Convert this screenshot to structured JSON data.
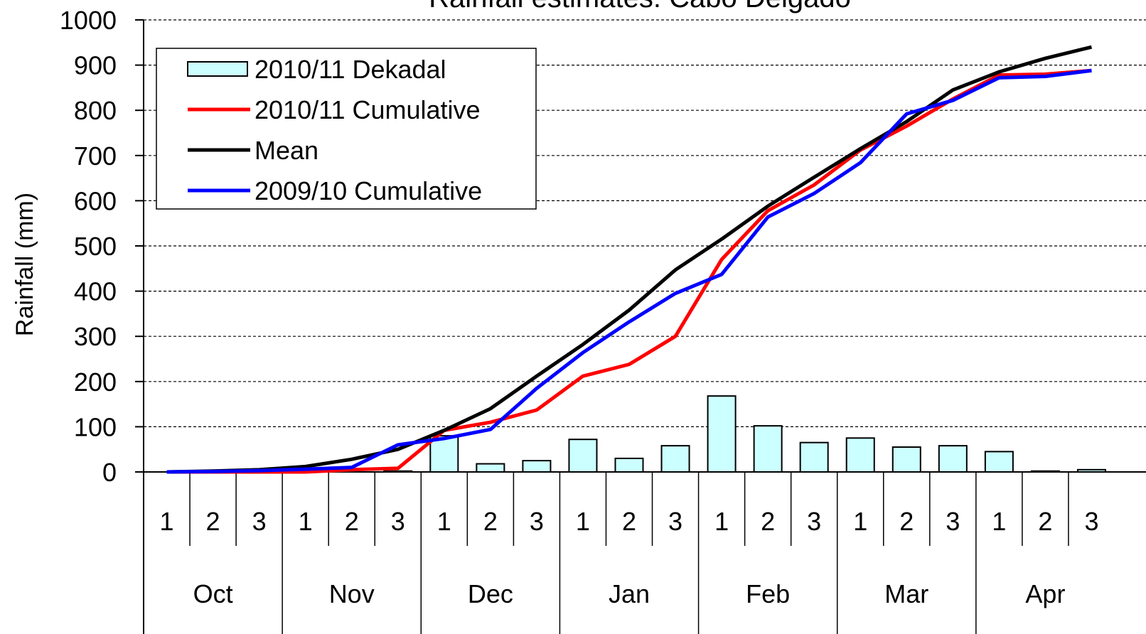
{
  "chart_data": {
    "type": "combo",
    "title": "Rainfall estimates: Cabo Delgado",
    "y_label": "Rainfall (mm)",
    "categories": [
      "1",
      "2",
      "3",
      "1",
      "2",
      "3",
      "1",
      "2",
      "3",
      "1",
      "2",
      "3",
      "1",
      "2",
      "3",
      "1",
      "2",
      "3",
      "1",
      "2",
      "3"
    ],
    "groups": [
      "Oct",
      "Nov",
      "Dec",
      "Jan",
      "Feb",
      "Mar",
      "Apr"
    ],
    "ylim": [
      0,
      1000
    ],
    "yticks": [
      0,
      100,
      200,
      300,
      400,
      500,
      600,
      700,
      800,
      900,
      1000
    ],
    "grid": true,
    "legend": "upper left",
    "series": [
      {
        "name": "2010/11 Dekadal",
        "type": "bar",
        "color": "#ccffff",
        "values": [
          0,
          0,
          0,
          0,
          0,
          2,
          80,
          18,
          25,
          72,
          30,
          58,
          168,
          102,
          65,
          75,
          55,
          58,
          45,
          2,
          5
        ]
      },
      {
        "name": "2010/11 Cumulative",
        "type": "line",
        "color": "#ff0000",
        "values": [
          0,
          0,
          0,
          0,
          5,
          8,
          92,
          110,
          137,
          212,
          238,
          300,
          470,
          578,
          635,
          712,
          765,
          825,
          878,
          880,
          888
        ]
      },
      {
        "name": "Mean",
        "type": "line",
        "color": "#000000",
        "values": [
          0,
          2,
          5,
          12,
          28,
          50,
          92,
          140,
          212,
          282,
          358,
          447,
          515,
          588,
          652,
          715,
          775,
          845,
          885,
          915,
          940
        ]
      },
      {
        "name": "2009/10 Cumulative",
        "type": "line",
        "color": "#0000ff",
        "values": [
          0,
          1,
          3,
          6,
          10,
          60,
          74,
          94,
          185,
          264,
          332,
          395,
          437,
          564,
          616,
          684,
          792,
          822,
          872,
          875,
          888
        ]
      }
    ]
  }
}
